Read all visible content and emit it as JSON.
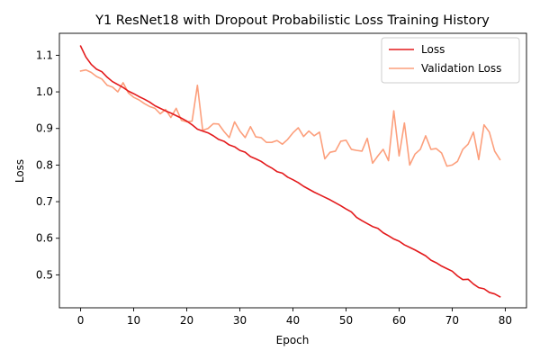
{
  "chart_data": {
    "type": "line",
    "title": "Y1 ResNet18 with Dropout Probabilistic Loss Training History",
    "xlabel": "Epoch",
    "ylabel": "Loss",
    "xlim": [
      -4,
      84
    ],
    "ylim": [
      0.41,
      1.16
    ],
    "xticks": [
      0,
      10,
      20,
      30,
      40,
      50,
      60,
      70,
      80
    ],
    "yticks": [
      0.5,
      0.6,
      0.7,
      0.8,
      0.9,
      1.0,
      1.1
    ],
    "grid": false,
    "legend_position": "top-right",
    "x": [
      0,
      1,
      2,
      3,
      4,
      5,
      6,
      7,
      8,
      9,
      10,
      11,
      12,
      13,
      14,
      15,
      16,
      17,
      18,
      19,
      20,
      21,
      22,
      23,
      24,
      25,
      26,
      27,
      28,
      29,
      30,
      31,
      32,
      33,
      34,
      35,
      36,
      37,
      38,
      39,
      40,
      41,
      42,
      43,
      44,
      45,
      46,
      47,
      48,
      49,
      50,
      51,
      52,
      53,
      54,
      55,
      56,
      57,
      58,
      59,
      60,
      61,
      62,
      63,
      64,
      65,
      66,
      67,
      68,
      69,
      70,
      71,
      72,
      73,
      74,
      75,
      76,
      77,
      78,
      79
    ],
    "series": [
      {
        "name": "Loss",
        "color": "#e31a1c",
        "values": [
          1.125,
          1.095,
          1.075,
          1.062,
          1.055,
          1.04,
          1.028,
          1.02,
          1.012,
          1.002,
          0.995,
          0.987,
          0.98,
          0.972,
          0.962,
          0.955,
          0.948,
          0.942,
          0.935,
          0.928,
          0.92,
          0.91,
          0.898,
          0.893,
          0.888,
          0.88,
          0.87,
          0.865,
          0.855,
          0.85,
          0.84,
          0.835,
          0.823,
          0.817,
          0.81,
          0.8,
          0.792,
          0.782,
          0.778,
          0.767,
          0.76,
          0.752,
          0.742,
          0.734,
          0.726,
          0.719,
          0.712,
          0.705,
          0.697,
          0.689,
          0.68,
          0.672,
          0.657,
          0.648,
          0.64,
          0.632,
          0.627,
          0.615,
          0.607,
          0.598,
          0.592,
          0.582,
          0.575,
          0.568,
          0.56,
          0.552,
          0.54,
          0.533,
          0.524,
          0.517,
          0.51,
          0.497,
          0.487,
          0.488,
          0.475,
          0.465,
          0.462,
          0.452,
          0.448,
          0.44
        ]
      },
      {
        "name": "Validation Loss",
        "color": "#fc9f7c",
        "values": [
          1.057,
          1.06,
          1.053,
          1.042,
          1.035,
          1.018,
          1.013,
          1.0,
          1.025,
          0.997,
          0.985,
          0.978,
          0.968,
          0.96,
          0.955,
          0.94,
          0.952,
          0.93,
          0.955,
          0.922,
          0.918,
          0.92,
          1.018,
          0.895,
          0.9,
          0.913,
          0.912,
          0.892,
          0.875,
          0.918,
          0.893,
          0.875,
          0.905,
          0.877,
          0.875,
          0.862,
          0.862,
          0.867,
          0.857,
          0.87,
          0.888,
          0.902,
          0.878,
          0.893,
          0.88,
          0.89,
          0.817,
          0.835,
          0.838,
          0.865,
          0.868,
          0.843,
          0.84,
          0.838,
          0.873,
          0.805,
          0.825,
          0.843,
          0.812,
          0.948,
          0.825,
          0.915,
          0.8,
          0.83,
          0.843,
          0.88,
          0.843,
          0.845,
          0.833,
          0.797,
          0.8,
          0.81,
          0.843,
          0.857,
          0.89,
          0.815,
          0.91,
          0.89,
          0.838,
          0.815
        ]
      }
    ]
  }
}
